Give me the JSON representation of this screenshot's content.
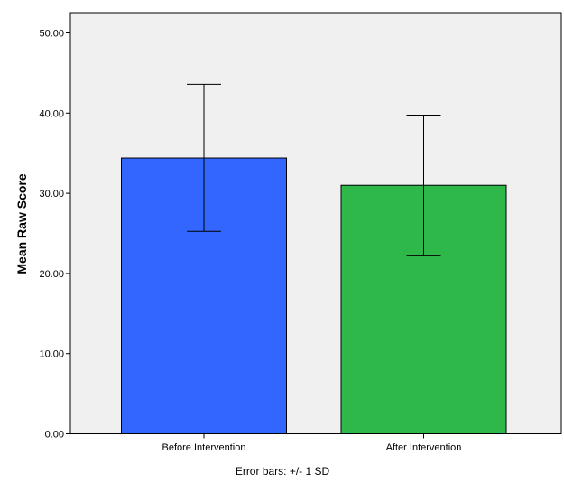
{
  "chart_data": {
    "type": "bar",
    "categories": [
      "Before Intervention",
      "After Intervention"
    ],
    "values": [
      34.4,
      31.0
    ],
    "error_bars": {
      "lower": [
        25.25,
        22.2
      ],
      "upper": [
        43.6,
        39.75
      ]
    },
    "colors": [
      "#3366ff",
      "#2eb84a"
    ],
    "plot_background": "#f0f0f0",
    "xlabel": "",
    "ylabel": "Mean Raw Score",
    "ylim": [
      0,
      50
    ],
    "yticks": [
      "0.00",
      "10.00",
      "20.00",
      "30.00",
      "40.00",
      "50.00"
    ],
    "grid": false,
    "footnote": "Error bars: +/- 1 SD"
  }
}
